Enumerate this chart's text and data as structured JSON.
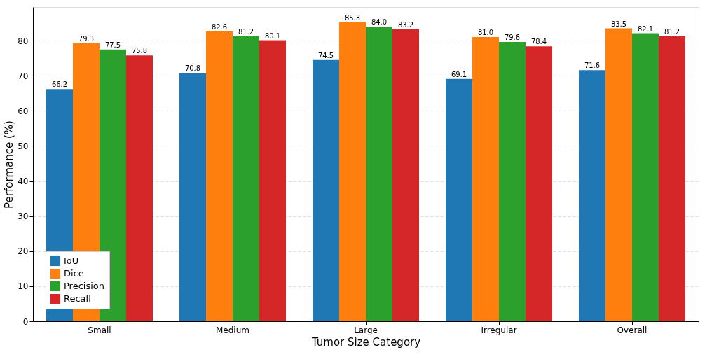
{
  "chart_data": {
    "type": "bar",
    "xlabel": "Tumor Size Category",
    "ylabel": "Performance (%)",
    "categories": [
      "Small",
      "Medium",
      "Large",
      "Irregular",
      "Overall"
    ],
    "series": [
      {
        "name": "IoU",
        "color": "#1f77b4",
        "values": [
          66.2,
          70.8,
          74.5,
          69.1,
          71.6
        ],
        "value_labels": [
          "66.2",
          "70.8",
          "74.5",
          "69.1",
          "71.6"
        ]
      },
      {
        "name": "Dice",
        "color": "#ff7f0e",
        "values": [
          79.3,
          82.6,
          85.3,
          81.0,
          83.5
        ],
        "value_labels": [
          "79.3",
          "82.6",
          "85.3",
          "81.0",
          "83.5"
        ]
      },
      {
        "name": "Precision",
        "color": "#2ca02c",
        "values": [
          77.5,
          81.2,
          84.0,
          79.6,
          82.1
        ],
        "value_labels": [
          "77.5",
          "81.2",
          "84.0",
          "79.6",
          "82.1"
        ]
      },
      {
        "name": "Recall",
        "color": "#d62728",
        "values": [
          75.8,
          80.1,
          83.2,
          78.4,
          81.2
        ],
        "value_labels": [
          "75.8",
          "80.1",
          "83.2",
          "78.4",
          "81.2"
        ]
      }
    ],
    "ylim": [
      0,
      89.6
    ],
    "yticks": [
      0,
      10,
      20,
      30,
      40,
      50,
      60,
      70,
      80
    ],
    "grid": "y",
    "legend": "bottom left"
  }
}
